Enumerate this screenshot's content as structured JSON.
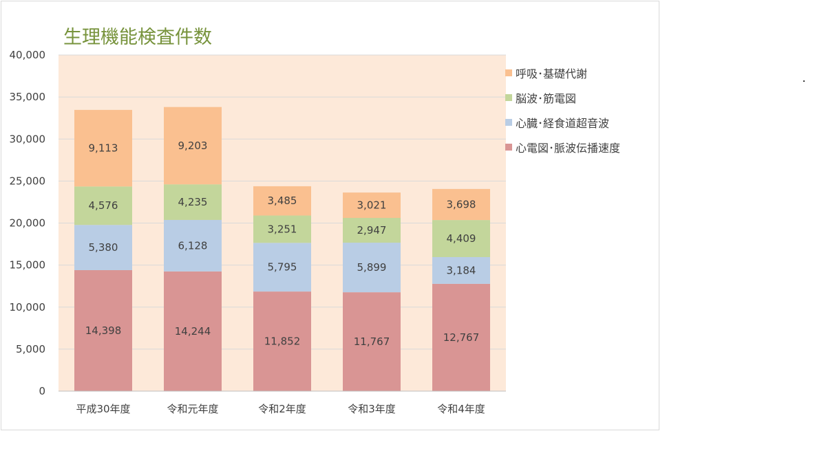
{
  "chart_data": {
    "type": "bar",
    "stacked": true,
    "title": "生理機能検査件数",
    "categories": [
      "平成30年度",
      "令和元年度",
      "令和2年度",
      "令和3年度",
      "令和4年度"
    ],
    "series": [
      {
        "name": "心電図･脈波伝播速度",
        "color": "#d99594",
        "values": [
          14398,
          14244,
          11852,
          11767,
          12767
        ],
        "labels": [
          "14,398",
          "14,244",
          "11,852",
          "11,767",
          "12,767"
        ]
      },
      {
        "name": "心臓･経食道超音波",
        "color": "#b9cde5",
        "values": [
          5380,
          6128,
          5795,
          5899,
          3184
        ],
        "labels": [
          "5,380",
          "6,128",
          "5,795",
          "5,899",
          "3,184"
        ]
      },
      {
        "name": "脳波･筋電図",
        "color": "#c3d69b",
        "values": [
          4576,
          4235,
          3251,
          2947,
          4409
        ],
        "labels": [
          "4,576",
          "4,235",
          "3,251",
          "2,947",
          "4,409"
        ]
      },
      {
        "name": "呼吸･基礎代謝",
        "color": "#fac090",
        "values": [
          9113,
          9203,
          3485,
          3021,
          3698
        ],
        "labels": [
          "9,113",
          "9,203",
          "3,485",
          "3,021",
          "3,698"
        ]
      }
    ],
    "ylim": [
      0,
      40000
    ],
    "yticks": [
      "0",
      "5,000",
      "10,000",
      "15,000",
      "20,000",
      "25,000",
      "30,000",
      "35,000",
      "40,000"
    ],
    "grid": true,
    "legend": "right",
    "plot_background": "#fde9d9"
  }
}
